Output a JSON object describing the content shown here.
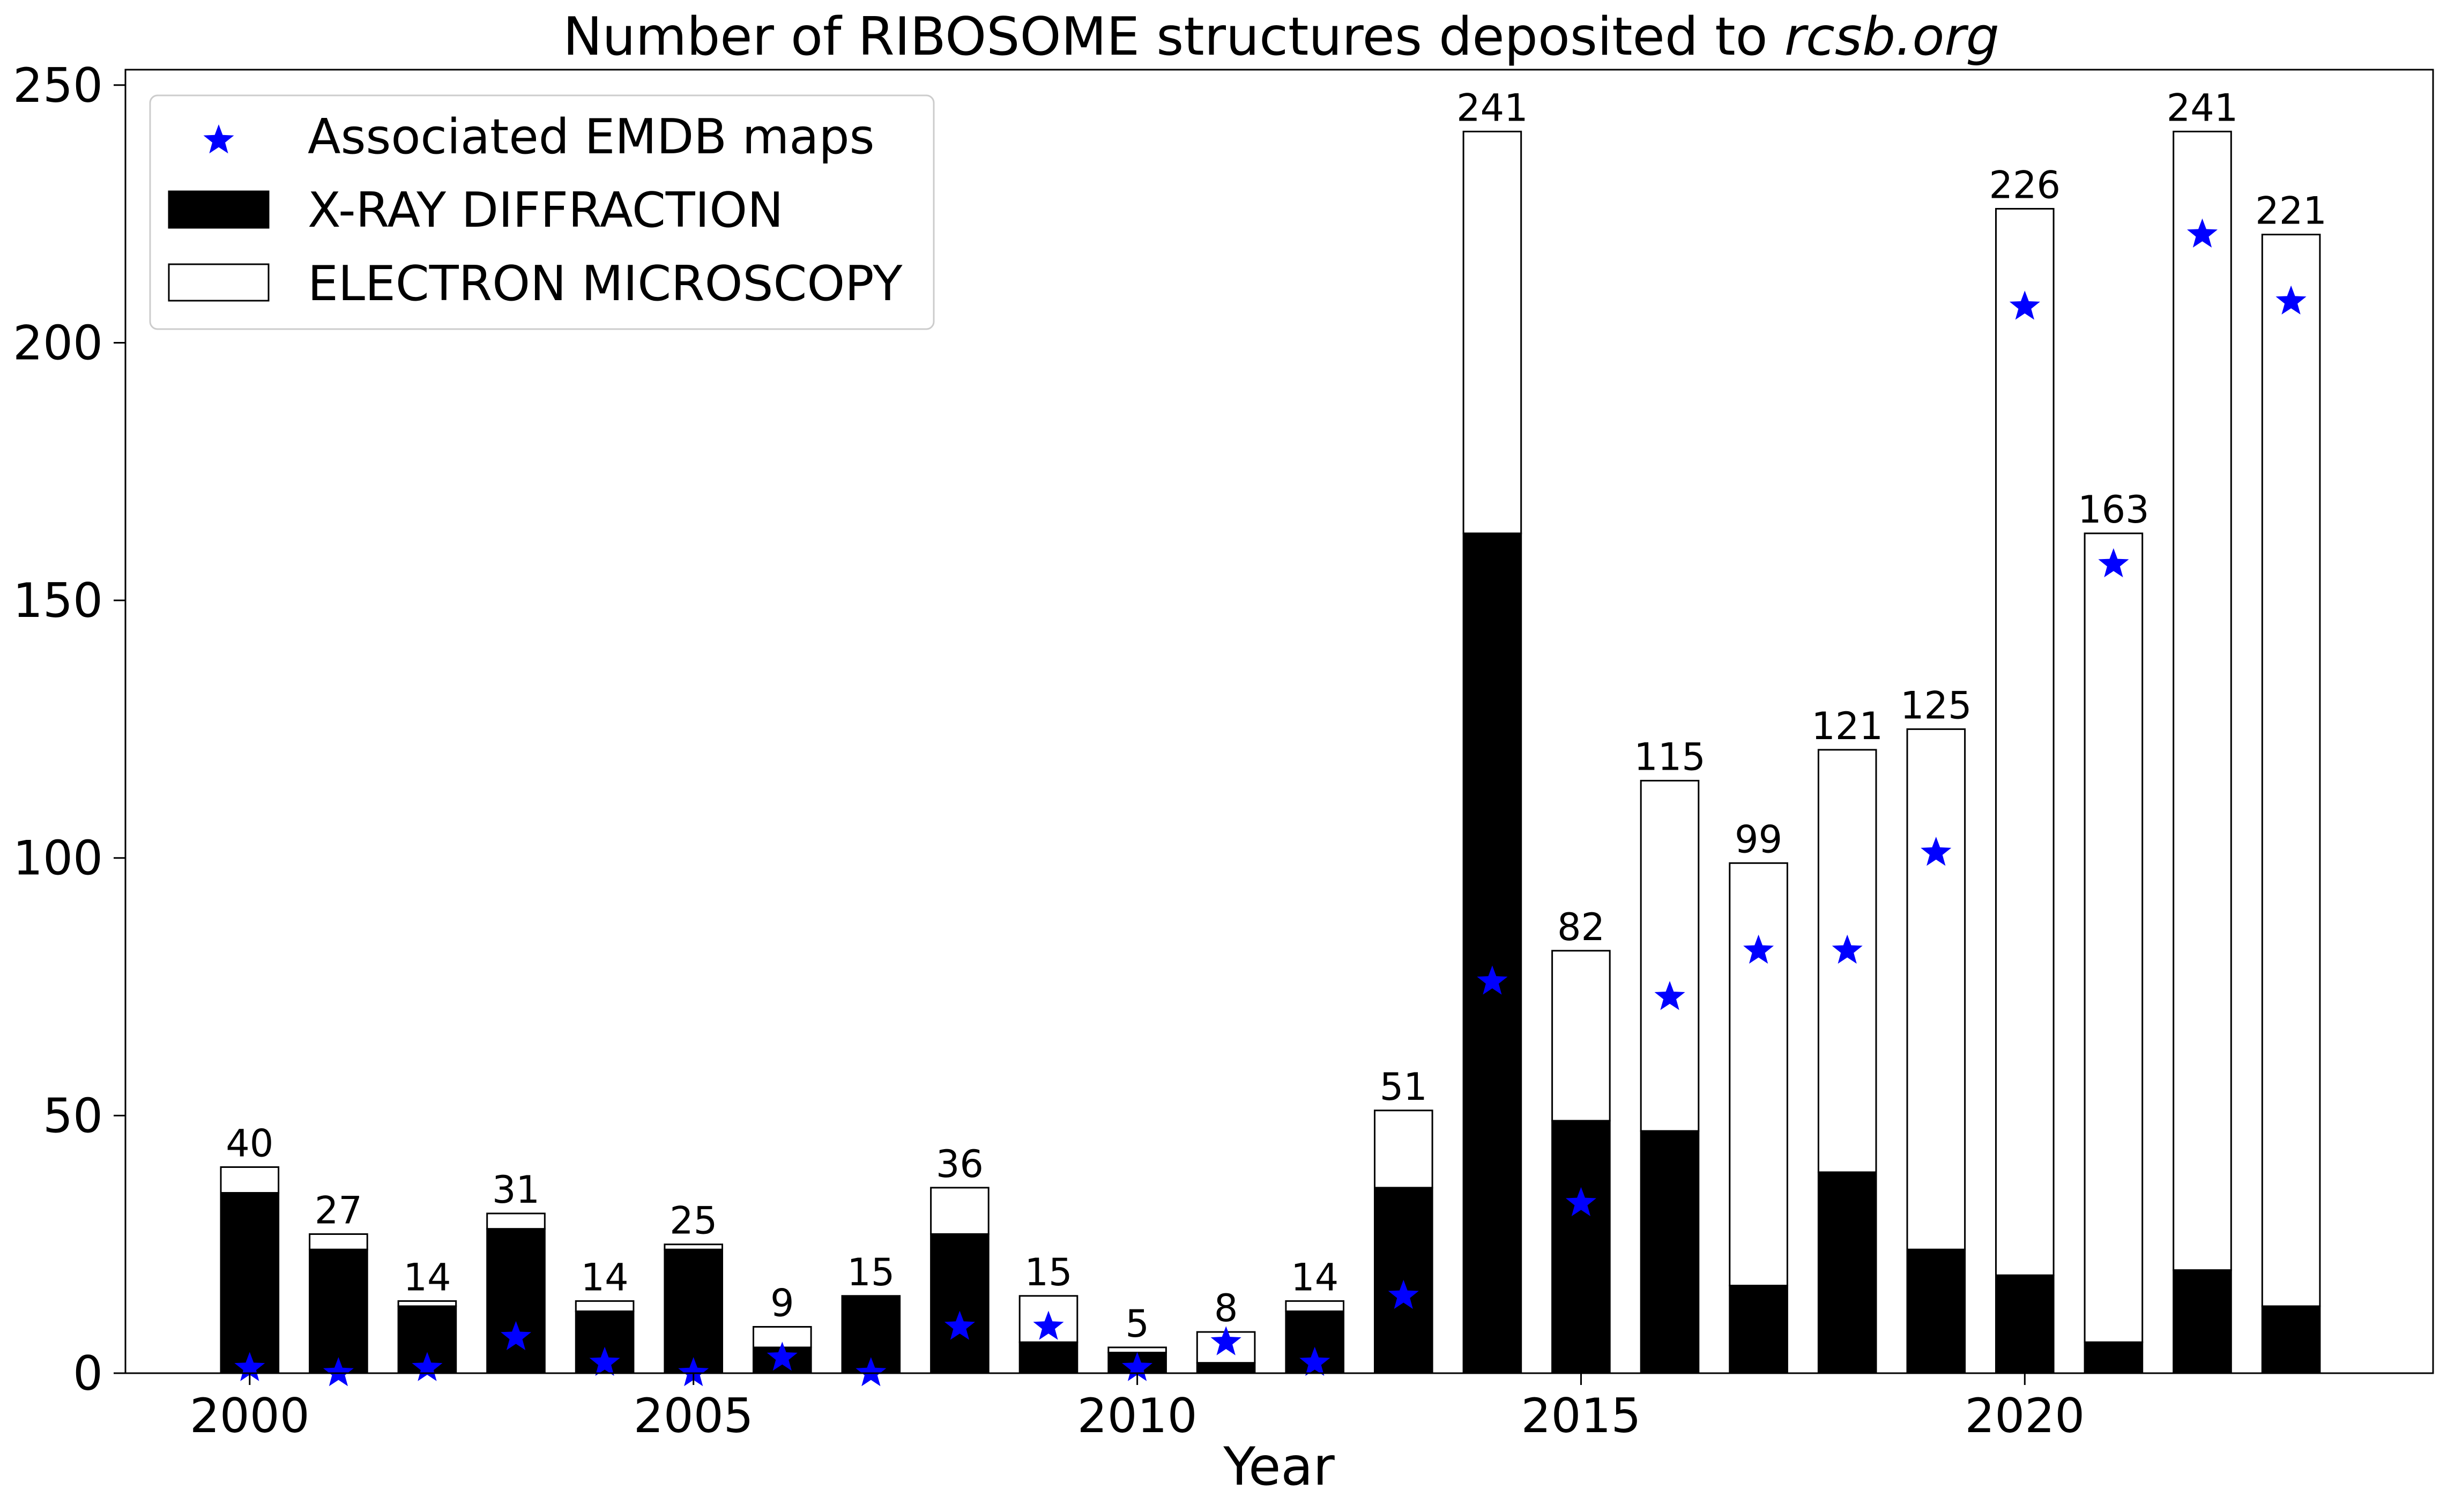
{
  "chart_data": {
    "type": "bar",
    "title_main": "Number of RIBOSOME structures deposited to ",
    "title_italic": "rcsb.org",
    "xlabel": "Year",
    "ylabel": "",
    "xlim": [
      1998.6,
      2024.6
    ],
    "ylim": [
      0,
      253
    ],
    "xticks": [
      2000,
      2005,
      2010,
      2015,
      2020
    ],
    "yticks": [
      0,
      50,
      100,
      150,
      200,
      250
    ],
    "grid": false,
    "legend_position": "top-left",
    "legend": {
      "emdb": "Associated EMDB maps",
      "xray": "X-RAY DIFFRACTION",
      "em": "ELECTRON MICROSCOPY"
    },
    "colors": {
      "xray": "#000000",
      "em": "#ffffff",
      "emdb": "#0000ff",
      "edge": "#000000"
    },
    "years": [
      2000,
      2001,
      2002,
      2003,
      2004,
      2005,
      2006,
      2007,
      2008,
      2009,
      2010,
      2011,
      2012,
      2013,
      2014,
      2015,
      2016,
      2017,
      2018,
      2019,
      2020,
      2021,
      2022,
      2023
    ],
    "totals": [
      40,
      27,
      14,
      31,
      14,
      25,
      9,
      15,
      36,
      15,
      5,
      8,
      14,
      51,
      241,
      82,
      115,
      99,
      121,
      125,
      226,
      163,
      241,
      221
    ],
    "series": [
      {
        "name": "X-RAY DIFFRACTION",
        "values": [
          35,
          24,
          13,
          28,
          12,
          24,
          5,
          15,
          27,
          6,
          4,
          2,
          12,
          36,
          163,
          49,
          47,
          17,
          39,
          24,
          19,
          6,
          20,
          13
        ]
      },
      {
        "name": "ELECTRON MICROSCOPY",
        "values": [
          5,
          3,
          1,
          3,
          2,
          1,
          4,
          0,
          9,
          9,
          1,
          6,
          2,
          15,
          78,
          33,
          68,
          82,
          82,
          101,
          207,
          157,
          221,
          208
        ]
      },
      {
        "name": "Associated EMDB maps",
        "values": [
          1,
          0,
          1,
          7,
          2,
          0,
          3,
          0,
          9,
          9,
          1,
          6,
          2,
          15,
          76,
          33,
          73,
          82,
          82,
          101,
          207,
          157,
          221,
          208
        ]
      }
    ]
  }
}
